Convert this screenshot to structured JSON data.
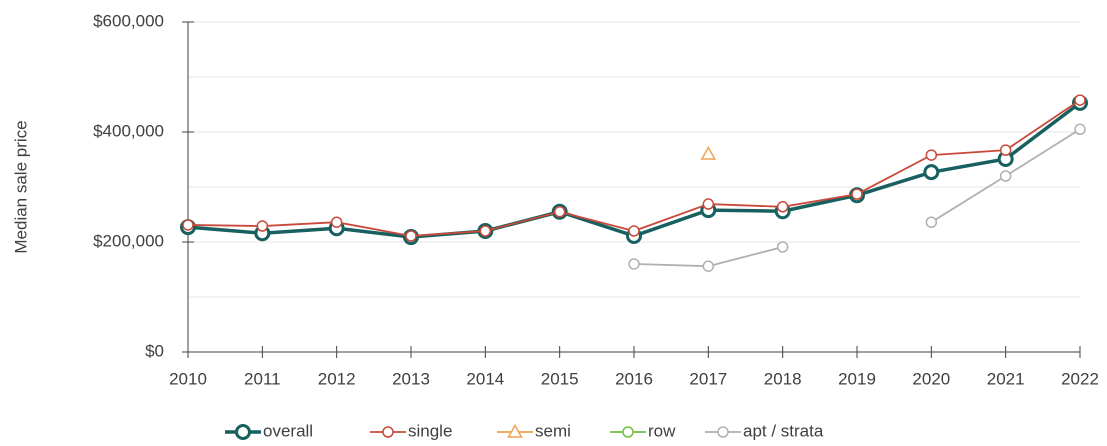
{
  "chart_data": {
    "type": "line",
    "y_label": "Median sale price",
    "x": [
      2010,
      2011,
      2012,
      2013,
      2014,
      2015,
      2016,
      2017,
      2018,
      2019,
      2020,
      2021,
      2022
    ],
    "series": [
      {
        "name": "overall",
        "color": "#17605f",
        "marker": "circle",
        "values": [
          227000,
          216000,
          225000,
          209000,
          220000,
          255000,
          211000,
          258000,
          256000,
          285000,
          327000,
          351000,
          453000
        ]
      },
      {
        "name": "single",
        "color": "#c94a3a",
        "marker": "circle",
        "values": [
          231000,
          229000,
          236000,
          211000,
          220000,
          255000,
          220000,
          269000,
          264000,
          287000,
          358000,
          367000,
          458000
        ]
      },
      {
        "name": "semi",
        "color": "#f0a050",
        "marker": "triangle",
        "values": [
          null,
          null,
          null,
          null,
          null,
          null,
          null,
          360000,
          null,
          null,
          null,
          null,
          null
        ]
      },
      {
        "name": "row",
        "color": "#70c040",
        "marker": "circle",
        "values": [
          null,
          null,
          null,
          null,
          null,
          null,
          null,
          null,
          null,
          null,
          null,
          null,
          null
        ]
      },
      {
        "name": "apt / strata",
        "color": "#b0b0b0",
        "marker": "circle",
        "values": [
          null,
          null,
          null,
          null,
          null,
          null,
          160000,
          156000,
          191000,
          null,
          236000,
          320000,
          405000
        ]
      }
    ],
    "xlim": [
      2010,
      2022
    ],
    "xticks": [
      2010,
      2011,
      2012,
      2013,
      2014,
      2015,
      2016,
      2017,
      2018,
      2019,
      2020,
      2021,
      2022
    ],
    "ylim": [
      0,
      600000
    ],
    "yticks": [
      {
        "value": 0,
        "label": "$0"
      },
      {
        "value": 200000,
        "label": "$200,000"
      },
      {
        "value": 400000,
        "label": "$400,000"
      },
      {
        "value": 600000,
        "label": "$600,000"
      }
    ],
    "minor_grid": [
      100000,
      300000,
      500000
    ],
    "grid": true,
    "legend": "bottom"
  }
}
